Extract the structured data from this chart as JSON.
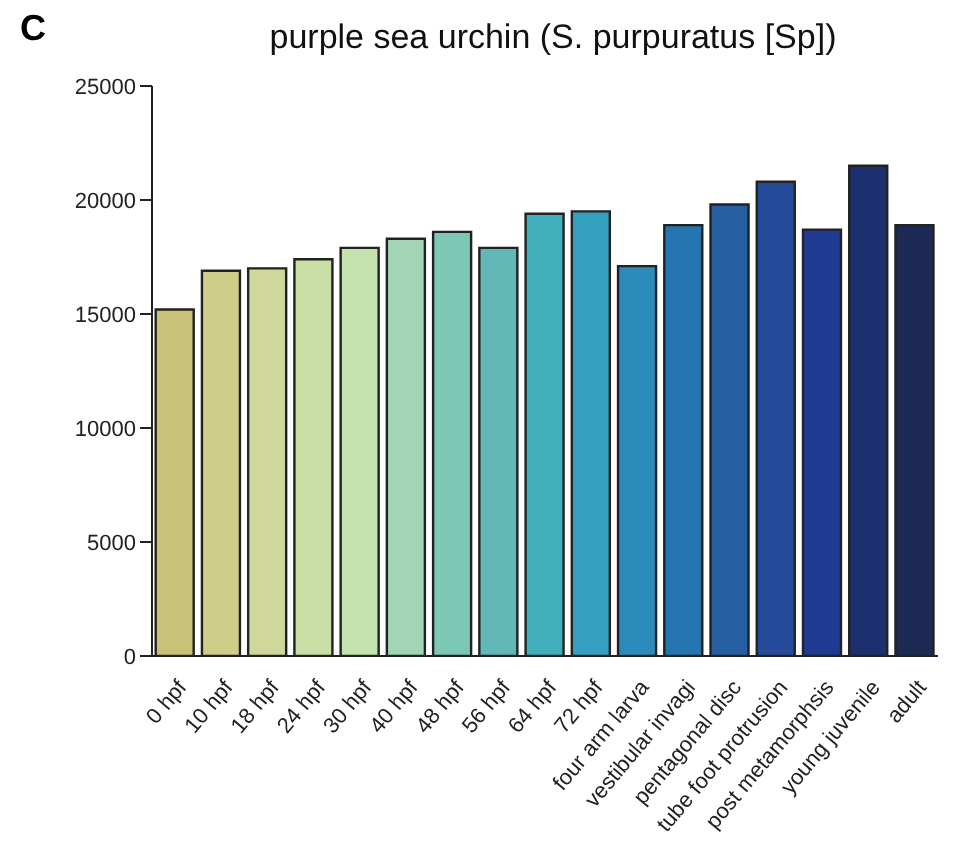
{
  "chart_data": {
    "type": "bar",
    "title": "purple sea urchin (S. purpuratus [Sp])",
    "annotations": [
      "C"
    ],
    "categories": [
      "0 hpf",
      "10 hpf",
      "18 hpf",
      "24 hpf",
      "30 hpf",
      "40 hpf",
      "48 hpf",
      "56 hpf",
      "64 hpf",
      "72 hpf",
      "four arm larva",
      "vestibular invagi",
      "pentagonal disc",
      "tube foot protrusion",
      "post metamorphsis",
      "young juvenile",
      "adult"
    ],
    "values": [
      15200,
      16900,
      17000,
      17400,
      17900,
      18300,
      18600,
      17900,
      19400,
      19500,
      17100,
      18900,
      19800,
      20800,
      18700,
      21500,
      18900
    ],
    "colors": [
      "#c8c278",
      "#cfcd8a",
      "#d0d79b",
      "#cadfa5",
      "#c5e3ae",
      "#a1d5b4",
      "#7cc8b5",
      "#62b8b7",
      "#3fb0bb",
      "#33a0bf",
      "#2b8bbb",
      "#2576b0",
      "#2660a3",
      "#234b9a",
      "#1e3a92",
      "#1c2f6e",
      "#1c2a55"
    ],
    "ylim": [
      0,
      25000
    ],
    "yticks": [
      0,
      5000,
      10000,
      15000,
      20000,
      25000
    ],
    "grid": false,
    "legend": false
  }
}
